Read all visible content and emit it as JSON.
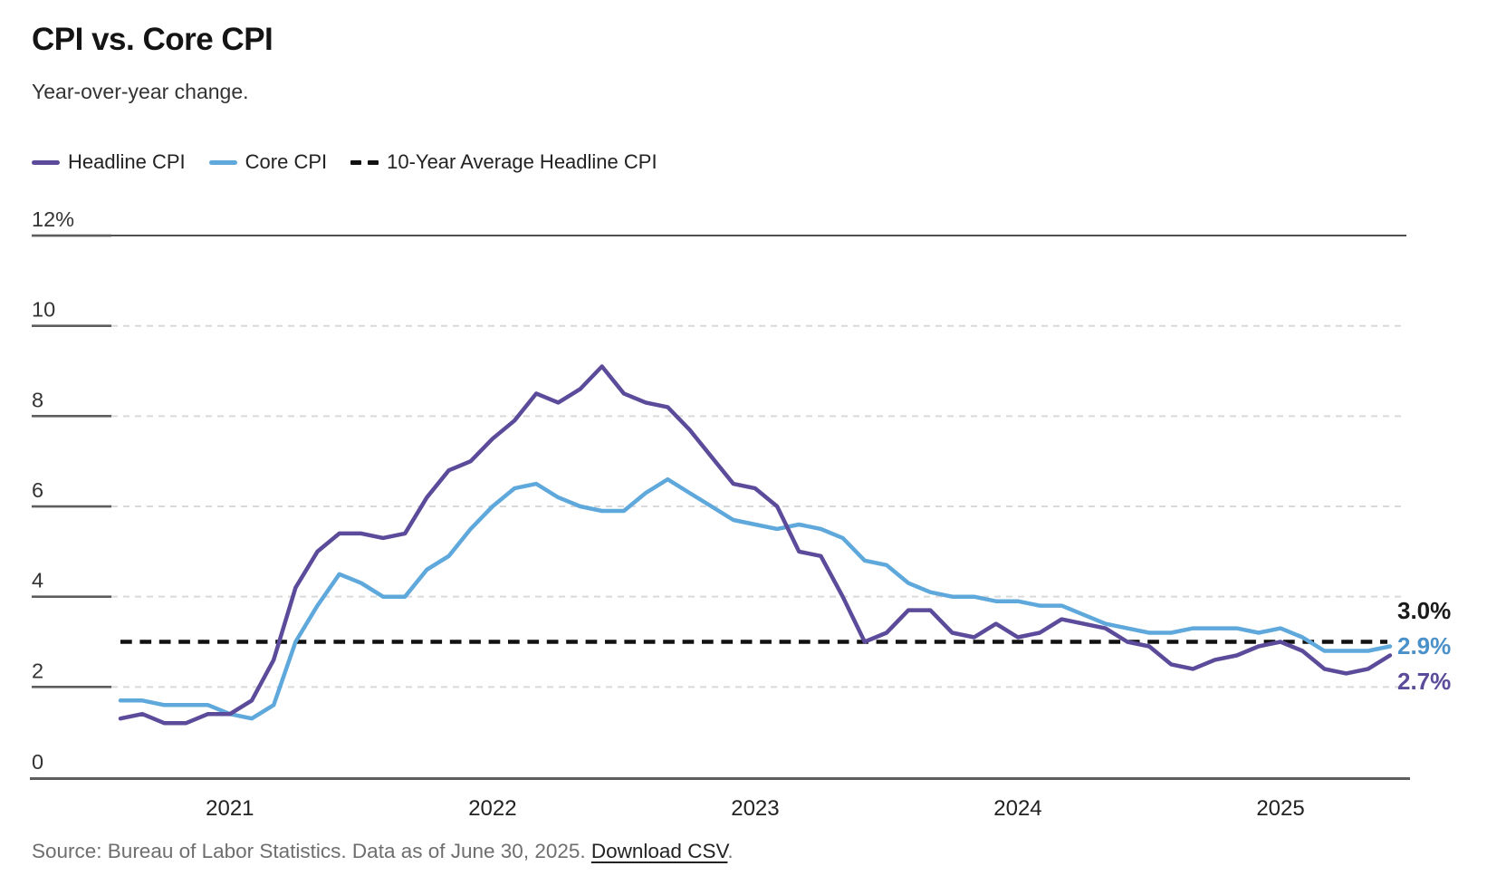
{
  "title": "CPI vs. Core CPI",
  "subtitle": "Year-over-year change.",
  "legend": [
    {
      "label": "Headline CPI",
      "color": "#5B4B9A",
      "style": "solid"
    },
    {
      "label": "Core CPI",
      "color": "#5FA8DC",
      "style": "solid"
    },
    {
      "label": "10-Year Average Headline CPI",
      "color": "#111111",
      "style": "dashed"
    }
  ],
  "end_labels": [
    {
      "text": "3.0%",
      "color": "#1a1a1a",
      "series": "10-Year Average Headline CPI"
    },
    {
      "text": "2.9%",
      "color": "#4A90C9",
      "series": "Core CPI"
    },
    {
      "text": "2.7%",
      "color": "#5B4B9A",
      "series": "Headline CPI"
    }
  ],
  "source": {
    "prefix": "Source: Bureau of Labor Statistics. Data as of June 30, 2025. ",
    "link": "Download CSV",
    "suffix": "."
  },
  "chart_data": {
    "type": "line",
    "x_start": "2020-08",
    "x_end": "2025-06",
    "x_frequency": "monthly",
    "x_year_ticks": [
      "2021",
      "2022",
      "2023",
      "2024",
      "2025"
    ],
    "ylim": [
      0,
      12
    ],
    "yticks": [
      0,
      2,
      4,
      6,
      8,
      10,
      12
    ],
    "ytick_top_label": "12%",
    "grid": "horizontal-dashed",
    "legend_position": "top-left",
    "average_line": {
      "label": "10-Year Average Headline CPI",
      "value": 3.0,
      "color": "#111111",
      "style": "dashed"
    },
    "series": [
      {
        "name": "Headline CPI",
        "color": "#5B4B9A",
        "values": [
          1.3,
          1.4,
          1.2,
          1.2,
          1.4,
          1.4,
          1.7,
          2.6,
          4.2,
          5.0,
          5.4,
          5.4,
          5.3,
          5.4,
          6.2,
          6.8,
          7.0,
          7.5,
          7.9,
          8.5,
          8.3,
          8.6,
          9.1,
          8.5,
          8.3,
          8.2,
          7.7,
          7.1,
          6.5,
          6.4,
          6.0,
          5.0,
          4.9,
          4.0,
          3.0,
          3.2,
          3.7,
          3.7,
          3.2,
          3.1,
          3.4,
          3.1,
          3.2,
          3.5,
          3.4,
          3.3,
          3.0,
          2.9,
          2.5,
          2.4,
          2.6,
          2.7,
          2.9,
          3.0,
          2.8,
          2.4,
          2.3,
          2.4,
          2.7
        ]
      },
      {
        "name": "Core CPI",
        "color": "#5FA8DC",
        "values": [
          1.7,
          1.7,
          1.6,
          1.6,
          1.6,
          1.4,
          1.3,
          1.6,
          3.0,
          3.8,
          4.5,
          4.3,
          4.0,
          4.0,
          4.6,
          4.9,
          5.5,
          6.0,
          6.4,
          6.5,
          6.2,
          6.0,
          5.9,
          5.9,
          6.3,
          6.6,
          6.3,
          6.0,
          5.7,
          5.6,
          5.5,
          5.6,
          5.5,
          5.3,
          4.8,
          4.7,
          4.3,
          4.1,
          4.0,
          4.0,
          3.9,
          3.9,
          3.8,
          3.8,
          3.6,
          3.4,
          3.3,
          3.2,
          3.2,
          3.3,
          3.3,
          3.3,
          3.2,
          3.3,
          3.1,
          2.8,
          2.8,
          2.8,
          2.9
        ]
      }
    ]
  }
}
